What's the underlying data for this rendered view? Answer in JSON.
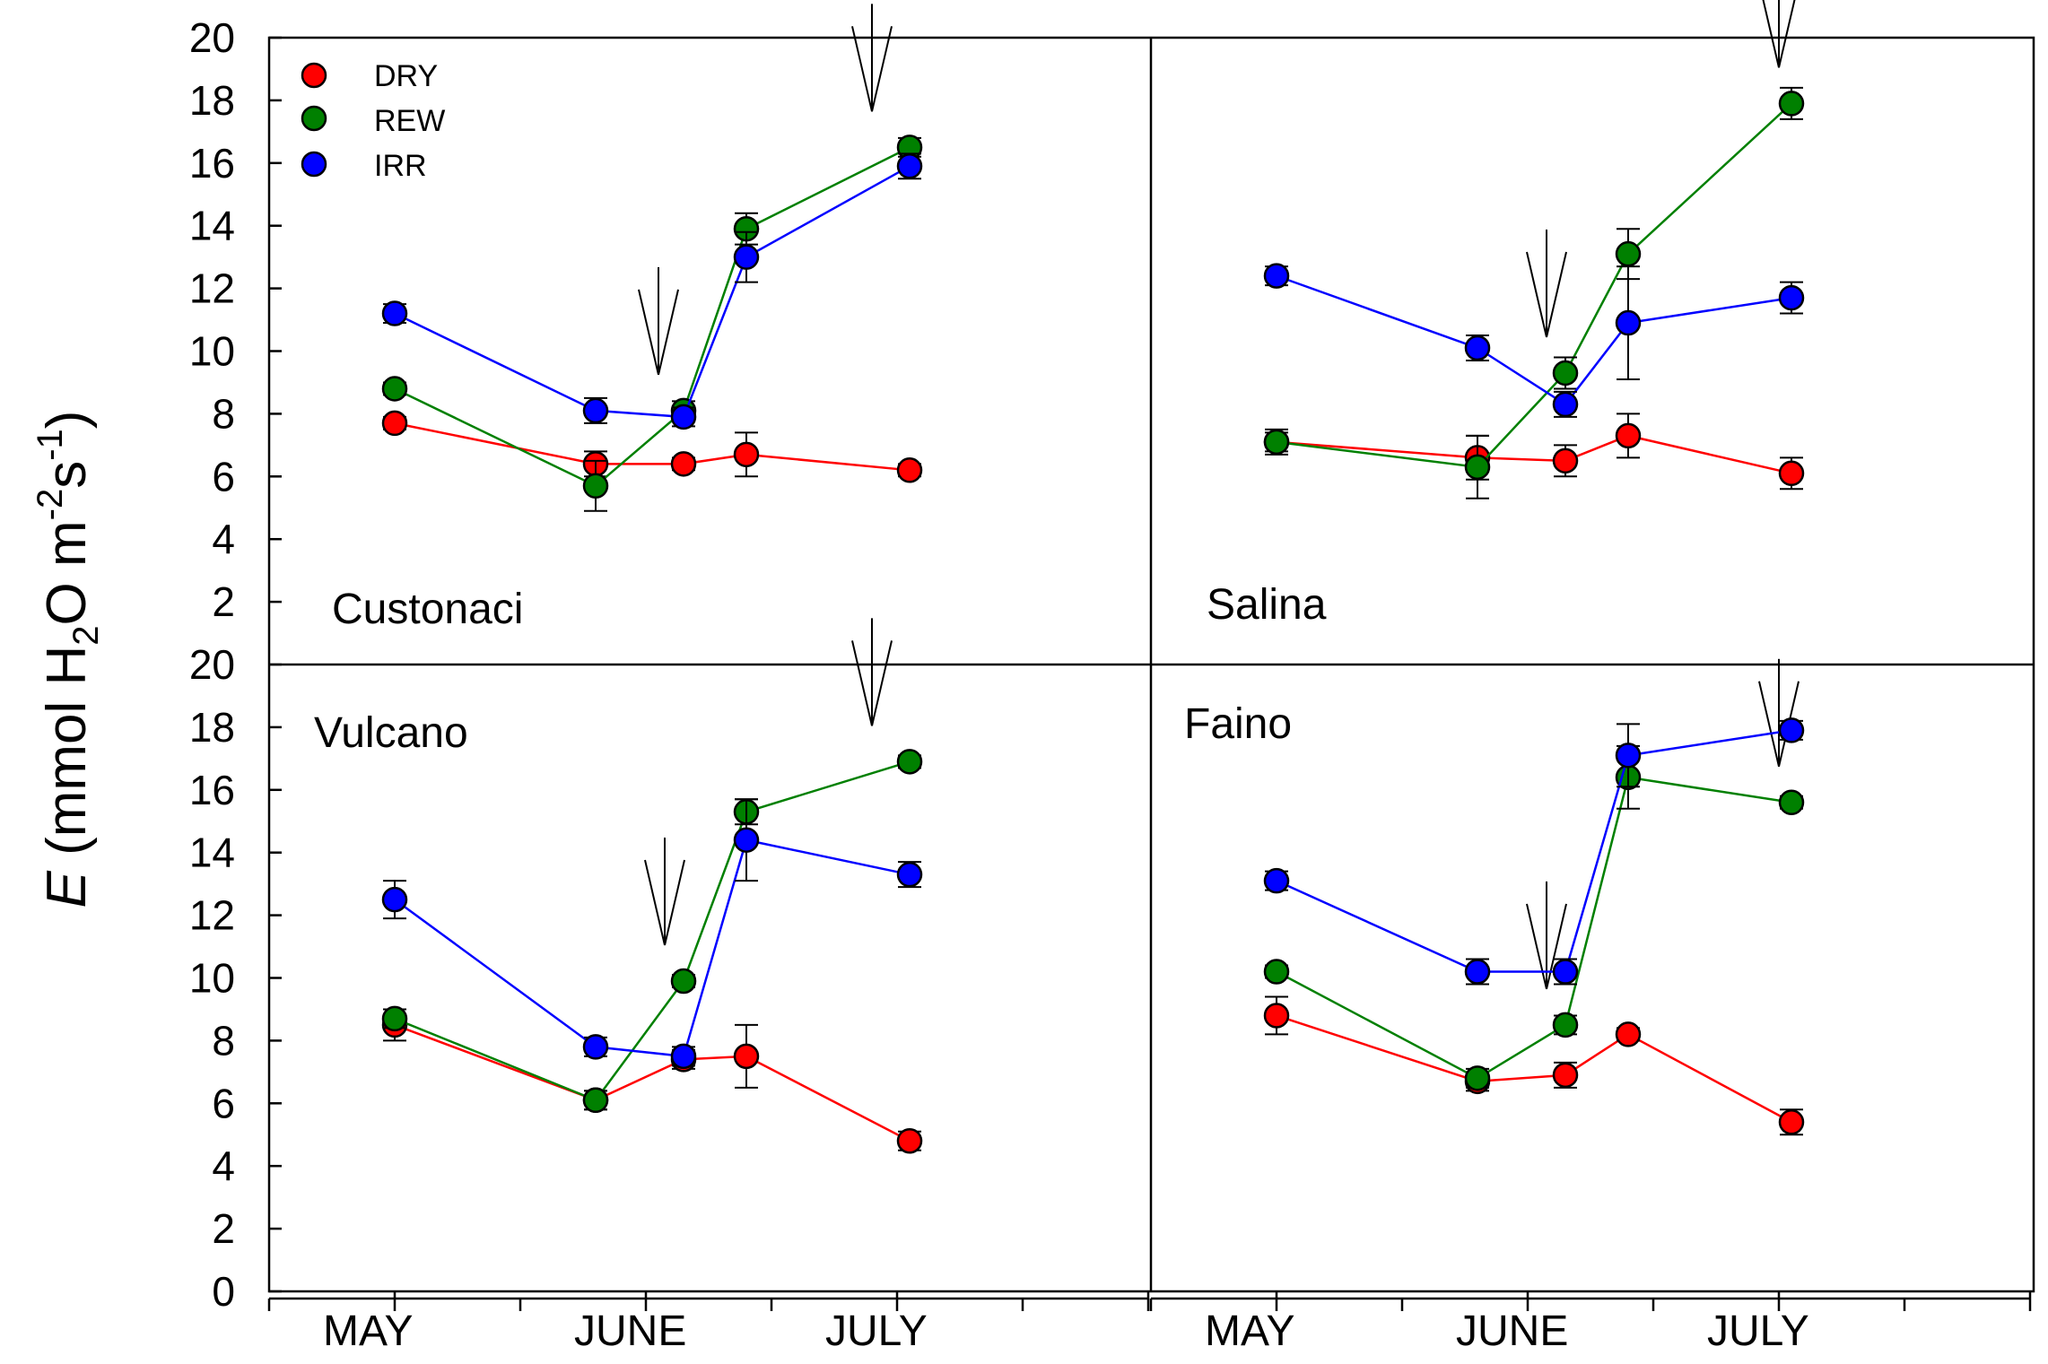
{
  "chart_data": {
    "type": "line",
    "ylabel": {
      "symbol": "E",
      "unit_open": " (mmol H",
      "unit_sub": "2",
      "unit_mid": "O m",
      "unit_sup1": "-2",
      "unit_s": "s",
      "unit_sup2": "-1",
      "unit_close": ")"
    },
    "ylim": [
      0,
      20
    ],
    "yticks": [
      "0",
      "2",
      "4",
      "6",
      "8",
      "10",
      "12",
      "14",
      "16",
      "18",
      "20"
    ],
    "xticks": [
      "MAY",
      "JUNE",
      "JULY"
    ],
    "legend": {
      "location": "top-left of first panel",
      "entries": [
        {
          "name": "DRY",
          "color": "#ff0000"
        },
        {
          "name": "REW",
          "color": "#008000"
        },
        {
          "name": "IRR",
          "color": "#0000ff"
        }
      ]
    },
    "x_sample_units": [
      1,
      2.6,
      3.3,
      3.8,
      5.1
    ],
    "panels": [
      {
        "name": "Custonaci",
        "arrows": [
          3.1,
          4.8
        ],
        "series": [
          {
            "name": "DRY",
            "color": "#ff0000",
            "values": [
              7.7,
              6.4,
              6.4,
              6.7,
              6.2
            ],
            "errors": [
              0.2,
              0.4,
              0.2,
              0.7,
              0.2
            ]
          },
          {
            "name": "REW",
            "color": "#008000",
            "values": [
              8.8,
              5.7,
              8.1,
              13.9,
              16.5
            ],
            "errors": [
              0.2,
              0.8,
              0.3,
              0.5,
              0.3
            ]
          },
          {
            "name": "IRR",
            "color": "#0000ff",
            "values": [
              11.2,
              8.1,
              7.9,
              13.0,
              15.9
            ],
            "errors": [
              0.3,
              0.4,
              0.3,
              0.8,
              0.4
            ]
          }
        ]
      },
      {
        "name": "Salina",
        "arrows": [
          3.15,
          5.0
        ],
        "series": [
          {
            "name": "DRY",
            "color": "#ff0000",
            "values": [
              7.1,
              6.6,
              6.5,
              7.3,
              6.1
            ],
            "errors": [
              0.3,
              0.7,
              0.5,
              0.7,
              0.5
            ]
          },
          {
            "name": "REW",
            "color": "#008000",
            "values": [
              7.1,
              6.3,
              9.3,
              13.1,
              17.9
            ],
            "errors": [
              0.4,
              1.0,
              0.5,
              0.8,
              0.5
            ]
          },
          {
            "name": "IRR",
            "color": "#0000ff",
            "values": [
              12.4,
              10.1,
              8.3,
              10.9,
              11.7
            ],
            "errors": [
              0.3,
              0.4,
              0.4,
              1.8,
              0.5
            ]
          }
        ]
      },
      {
        "name": "Vulcano",
        "arrows": [
          3.15,
          4.8
        ],
        "series": [
          {
            "name": "DRY",
            "color": "#ff0000",
            "values": [
              8.5,
              6.1,
              7.4,
              7.5,
              4.8
            ],
            "errors": [
              0.5,
              0.3,
              0.3,
              1.0,
              0.3
            ]
          },
          {
            "name": "REW",
            "color": "#008000",
            "values": [
              8.7,
              6.1,
              9.9,
              15.3,
              16.9
            ],
            "errors": [
              0.3,
              0.3,
              0.2,
              0.4,
              0.2
            ]
          },
          {
            "name": "IRR",
            "color": "#0000ff",
            "values": [
              12.5,
              7.8,
              7.5,
              14.4,
              13.3
            ],
            "errors": [
              0.6,
              0.3,
              0.3,
              1.3,
              0.4
            ]
          }
        ]
      },
      {
        "name": "Faino",
        "arrows": [
          3.15,
          5.0
        ],
        "series": [
          {
            "name": "DRY",
            "color": "#ff0000",
            "values": [
              8.8,
              6.7,
              6.9,
              8.2,
              5.4
            ],
            "errors": [
              0.6,
              0.3,
              0.4,
              0.2,
              0.4
            ]
          },
          {
            "name": "REW",
            "color": "#008000",
            "values": [
              10.2,
              6.8,
              8.5,
              16.4,
              15.6
            ],
            "errors": [
              0.2,
              0.3,
              0.3,
              1.0,
              0.2
            ]
          },
          {
            "name": "IRR",
            "color": "#0000ff",
            "values": [
              13.1,
              10.2,
              10.2,
              17.1,
              17.9
            ],
            "errors": [
              0.3,
              0.4,
              0.4,
              1.0,
              0.3
            ]
          }
        ]
      }
    ]
  }
}
